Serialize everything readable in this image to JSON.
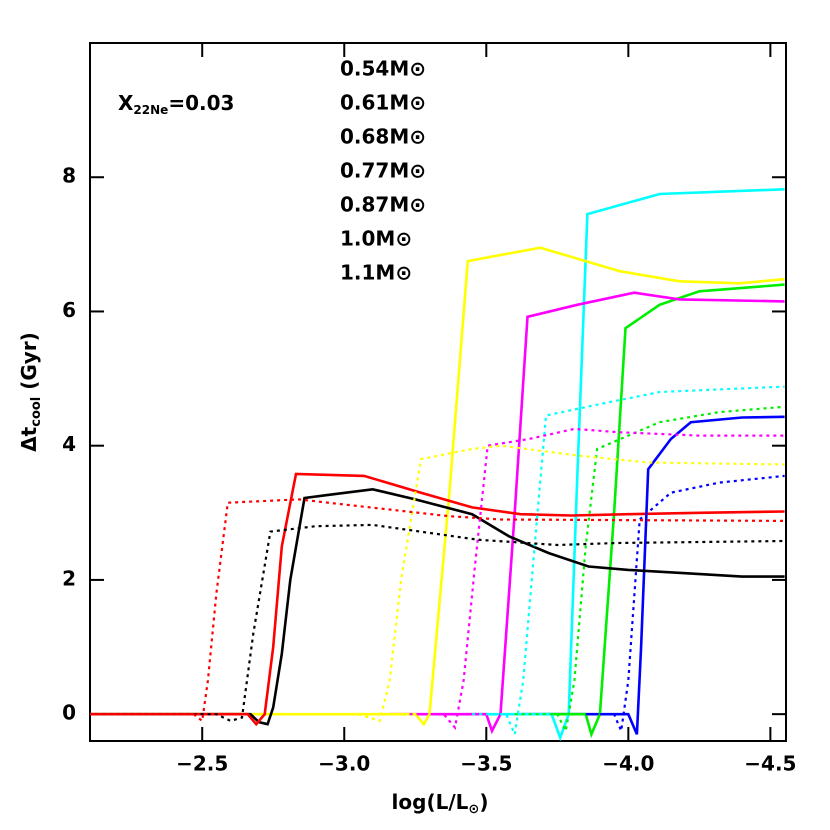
{
  "chart_data": {
    "type": "line",
    "xlabel": {
      "text": "log(L/L",
      "sub": "⊙",
      "rest": ")"
    },
    "ylabel": {
      "text": "Δt",
      "sub": "cool",
      "rest": " (Gyr)"
    },
    "annotation": {
      "text": "X",
      "sub": "22Ne",
      "rest": "=0.03"
    },
    "xlim": [
      -2.105,
      -4.555
    ],
    "ylim": [
      -0.4,
      10
    ],
    "xticks": [
      {
        "value": -2.5,
        "label": "−2.5"
      },
      {
        "value": -3,
        "label": "−3.0"
      },
      {
        "value": -3.5,
        "label": "−3.5"
      },
      {
        "value": -4,
        "label": "−4.0"
      },
      {
        "value": -4.5,
        "label": "−4.5"
      }
    ],
    "yticks": [
      0,
      2,
      4,
      6,
      8
    ],
    "series": [
      {
        "name": "0.54M⊙",
        "color": "#0000ff",
        "style": "solid",
        "x": [
          -3.62,
          -4.0,
          -4.03,
          -4.045,
          -4.07,
          -4.15,
          -4.22,
          -4.4,
          -4.55
        ],
        "values": [
          0,
          0,
          -0.3,
          1.0,
          3.65,
          4.1,
          4.35,
          4.42,
          4.43
        ]
      },
      {
        "name": "0.61M⊙",
        "color": "#00ee00",
        "style": "solid",
        "x": [
          -3.7,
          -3.85,
          -3.87,
          -3.9,
          -3.95,
          -3.99,
          -4.11,
          -4.25,
          -4.55
        ],
        "values": [
          0,
          0,
          -0.3,
          0,
          3.0,
          5.75,
          6.1,
          6.3,
          6.4
        ]
      },
      {
        "name": "0.68M⊙",
        "color": "#00ffff",
        "style": "solid",
        "x": [
          -3.44,
          -3.73,
          -3.76,
          -3.79,
          -3.82,
          -3.856,
          -4.11,
          -4.55
        ],
        "values": [
          0,
          0,
          -0.35,
          0,
          3.5,
          7.45,
          7.75,
          7.82
        ]
      },
      {
        "name": "0.77M⊙",
        "color": "#ff00ff",
        "style": "solid",
        "x": [
          -3.16,
          -3.5,
          -3.52,
          -3.55,
          -3.6,
          -3.645,
          -3.82,
          -4.02,
          -4.18,
          -4.55
        ],
        "values": [
          0,
          0,
          -0.25,
          0,
          3.0,
          5.92,
          6.1,
          6.28,
          6.18,
          6.15
        ]
      },
      {
        "name": "0.87M⊙",
        "color": "#ffff00",
        "style": "solid",
        "x": [
          -2.1,
          -3.25,
          -3.28,
          -3.3,
          -3.37,
          -3.435,
          -3.69,
          -3.97,
          -4.18,
          -4.39,
          -4.55
        ],
        "values": [
          0,
          0,
          -0.15,
          0,
          3.3,
          6.75,
          6.95,
          6.6,
          6.45,
          6.42,
          6.48
        ]
      },
      {
        "name": "1.0M⊙",
        "color": "#000000",
        "style": "solid",
        "x": [
          -2.1,
          -2.67,
          -2.7,
          -2.73,
          -2.75,
          -2.78,
          -2.81,
          -2.86,
          -2.95,
          -3.1,
          -3.25,
          -3.45,
          -3.58,
          -3.72,
          -3.86,
          -4.0,
          -4.2,
          -4.4,
          -4.55
        ],
        "values": [
          0,
          0,
          -0.12,
          -0.15,
          0.1,
          0.9,
          2.0,
          3.22,
          3.27,
          3.35,
          3.2,
          2.98,
          2.65,
          2.4,
          2.2,
          2.15,
          2.1,
          2.05,
          2.05
        ]
      },
      {
        "name": "1.1M⊙",
        "color": "#ff0000",
        "style": "solid",
        "x": [
          -2.1,
          -2.66,
          -2.69,
          -2.72,
          -2.75,
          -2.78,
          -2.83,
          -3.07,
          -3.27,
          -3.45,
          -3.62,
          -3.8,
          -4.0,
          -4.25,
          -4.55
        ],
        "values": [
          0,
          0,
          -0.15,
          0,
          1.0,
          2.5,
          3.58,
          3.55,
          3.3,
          3.08,
          2.98,
          2.96,
          2.98,
          3.0,
          3.02
        ]
      },
      {
        "color": "#0000ff",
        "style": "dotted",
        "x": [
          -3.85,
          -3.95,
          -3.975,
          -4.0,
          -4.04,
          -4.15,
          -4.32,
          -4.55
        ],
        "values": [
          0,
          0,
          -0.25,
          0.5,
          2.9,
          3.3,
          3.45,
          3.55
        ]
      },
      {
        "color": "#00ee00",
        "style": "dotted",
        "x": [
          -3.6,
          -3.75,
          -3.78,
          -3.81,
          -3.85,
          -3.89,
          -4.11,
          -4.32,
          -4.55
        ],
        "values": [
          0,
          0,
          -0.25,
          0.5,
          2.5,
          3.95,
          4.35,
          4.5,
          4.58
        ]
      },
      {
        "color": "#00ffff",
        "style": "dotted",
        "x": [
          -3.45,
          -3.57,
          -3.6,
          -3.63,
          -3.67,
          -3.71,
          -3.9,
          -4.11,
          -4.55
        ],
        "values": [
          0,
          0,
          -0.3,
          0.5,
          2.5,
          4.45,
          4.62,
          4.8,
          4.88
        ]
      },
      {
        "color": "#ff00ff",
        "style": "dotted",
        "x": [
          -3.23,
          -3.35,
          -3.39,
          -3.42,
          -3.46,
          -3.505,
          -3.65,
          -3.81,
          -3.97,
          -4.25,
          -4.55
        ],
        "values": [
          0,
          0,
          -0.2,
          0.5,
          2.2,
          4.0,
          4.1,
          4.25,
          4.2,
          4.15,
          4.15
        ]
      },
      {
        "color": "#ffff00",
        "style": "dotted",
        "x": [
          -3.05,
          -3.125,
          -3.16,
          -3.2,
          -3.27,
          -3.45,
          -3.55,
          -3.83,
          -4.07,
          -4.55
        ],
        "values": [
          0,
          -0.1,
          0.5,
          2.0,
          3.8,
          3.95,
          4.0,
          3.85,
          3.75,
          3.72
        ]
      },
      {
        "color": "#000000",
        "style": "dotted",
        "x": [
          -2.1,
          -2.55,
          -2.6,
          -2.64,
          -2.68,
          -2.74,
          -2.9,
          -3.1,
          -3.3,
          -3.47,
          -3.75,
          -3.96,
          -4.55
        ],
        "values": [
          0,
          0,
          -0.1,
          -0.05,
          1.2,
          2.72,
          2.8,
          2.82,
          2.7,
          2.6,
          2.52,
          2.55,
          2.58
        ]
      },
      {
        "color": "#ff0000",
        "style": "dotted",
        "x": [
          -2.1,
          -2.47,
          -2.5,
          -2.52,
          -2.55,
          -2.59,
          -2.84,
          -3.05,
          -3.37,
          -3.55,
          -4.55
        ],
        "values": [
          0,
          0,
          -0.1,
          0.5,
          1.8,
          3.15,
          3.2,
          3.1,
          2.95,
          2.9,
          2.88
        ]
      }
    ]
  }
}
